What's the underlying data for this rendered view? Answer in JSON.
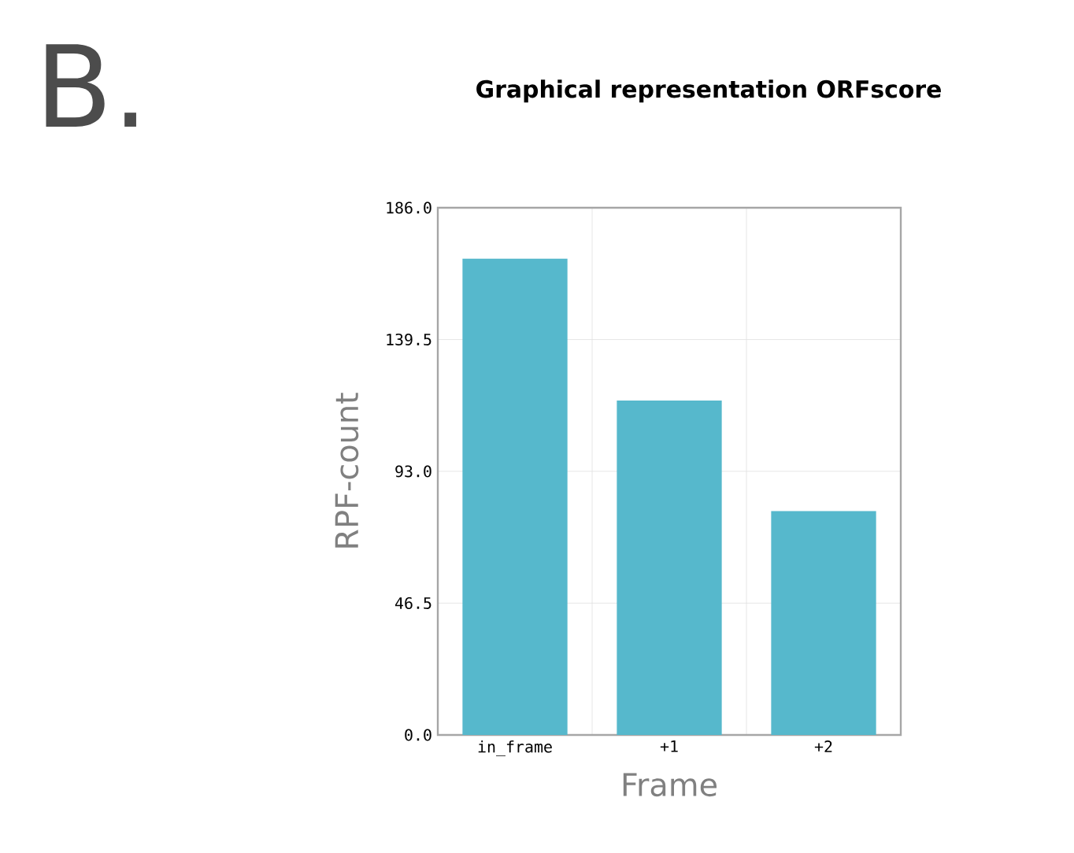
{
  "chart_data": {
    "type": "bar",
    "title": "Graphical representation ORFscore",
    "xlabel": "Frame",
    "ylabel": "RPF-count",
    "annotations": [
      "B."
    ],
    "categories": [
      "in_frame",
      "+1",
      "+2"
    ],
    "values": [
      168,
      118,
      79
    ],
    "color": "#56b8cc",
    "ylim": [
      0,
      186
    ],
    "yticks": [
      {
        "value": 0,
        "label": "0.0"
      },
      {
        "value": 46.5,
        "label": "46.5"
      },
      {
        "value": 93,
        "label": "93.0"
      },
      {
        "value": 139.5,
        "label": "139.5"
      },
      {
        "value": 186,
        "label": "186.0"
      }
    ],
    "grid": true
  }
}
